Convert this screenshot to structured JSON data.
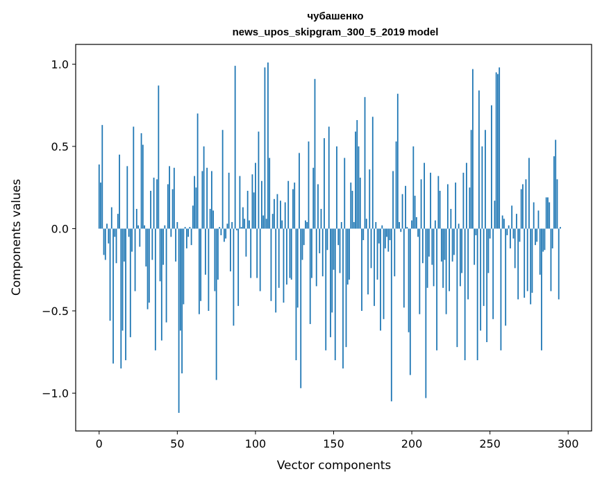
{
  "chart_data": {
    "type": "bar",
    "title_line1": "чубашенко",
    "title_line2": "news_upos_skipgram_300_5_2019 model",
    "xlabel": "Vector components",
    "ylabel": "Components values",
    "xlim": [
      -15,
      315
    ],
    "ylim": [
      -1.23,
      1.12
    ],
    "x_ticks": [
      0,
      50,
      100,
      150,
      200,
      250,
      300
    ],
    "x_tick_labels": [
      "0",
      "50",
      "100",
      "150",
      "200",
      "250",
      "300"
    ],
    "y_ticks": [
      -1.0,
      -0.5,
      0.0,
      0.5,
      1.0
    ],
    "y_tick_labels": [
      "−1.0",
      "−0.5",
      "0.0",
      "0.5",
      "1.0"
    ],
    "bar_color": "#1f77b4",
    "values": [
      0.39,
      0.28,
      0.63,
      -0.16,
      -0.19,
      0.03,
      -0.09,
      -0.56,
      0.13,
      -0.82,
      -0.05,
      -0.21,
      0.09,
      0.45,
      -0.85,
      -0.62,
      -0.2,
      -0.8,
      0.38,
      -0.05,
      -0.66,
      -0.14,
      0.62,
      -0.38,
      0.12,
      0.02,
      -0.11,
      0.58,
      0.51,
      0.02,
      -0.23,
      -0.49,
      -0.45,
      0.23,
      -0.19,
      0.31,
      -0.74,
      0.3,
      0.87,
      -0.32,
      -0.68,
      -0.22,
      0.02,
      -0.57,
      0.27,
      0.38,
      -0.05,
      0.24,
      0.37,
      -0.2,
      0.04,
      -1.12,
      -0.62,
      -0.88,
      -0.46,
      0.01,
      -0.12,
      -0.05,
      0.01,
      -0.1,
      0.14,
      0.32,
      0.25,
      0.7,
      -0.52,
      -0.44,
      0.35,
      0.5,
      -0.28,
      0.37,
      -0.5,
      0.12,
      0.35,
      0.11,
      -0.38,
      -0.92,
      -0.31,
      0.01,
      -0.04,
      0.6,
      -0.08,
      -0.06,
      0.03,
      0.34,
      -0.26,
      0.04,
      -0.59,
      0.99,
      -0.01,
      -0.47,
      0.32,
      0.01,
      0.13,
      0.06,
      -0.17,
      0.23,
      0.05,
      -0.3,
      0.33,
      0.22,
      0.4,
      -0.3,
      0.59,
      -0.38,
      0.29,
      0.08,
      0.98,
      0.06,
      1.01,
      0.43,
      -0.44,
      0.09,
      0.18,
      -0.51,
      0.21,
      -0.36,
      0.17,
      0.05,
      -0.45,
      0.16,
      -0.34,
      0.29,
      -0.3,
      -0.31,
      0.24,
      0.28,
      -0.8,
      -0.48,
      0.46,
      -0.97,
      -0.19,
      -0.1,
      0.05,
      0.04,
      0.53,
      -0.58,
      -0.3,
      0.37,
      0.91,
      -0.35,
      0.27,
      -0.15,
      0.12,
      -0.29,
      0.55,
      -0.74,
      -0.13,
      0.62,
      -0.66,
      -0.51,
      -0.25,
      -0.8,
      0.5,
      -0.1,
      -0.27,
      0.04,
      -0.85,
      0.43,
      -0.72,
      -0.34,
      -0.31,
      0.28,
      0.23,
      0.04,
      0.59,
      0.66,
      0.5,
      0.31,
      -0.5,
      -0.07,
      0.8,
      0.06,
      -0.4,
      0.36,
      -0.24,
      0.68,
      -0.47,
      0.04,
      -0.31,
      -0.09,
      -0.62,
      0.02,
      -0.55,
      -0.12,
      -0.05,
      -0.14,
      -0.07,
      -1.05,
      0.35,
      -0.29,
      0.53,
      0.82,
      0.04,
      -0.02,
      0.21,
      -0.48,
      0.26,
      0.01,
      -0.63,
      -0.89,
      0.05,
      0.5,
      0.2,
      0.07,
      -0.05,
      -0.52,
      0.3,
      -0.21,
      0.4,
      -1.03,
      -0.36,
      -0.17,
      0.34,
      -0.22,
      -0.35,
      0.05,
      -0.74,
      0.32,
      0.23,
      -0.2,
      -0.36,
      -0.19,
      -0.52,
      0.27,
      -0.38,
      0.12,
      -0.2,
      -0.16,
      0.28,
      -0.72,
      0.03,
      -0.35,
      -0.27,
      0.34,
      -0.8,
      0.4,
      -0.43,
      0.25,
      0.6,
      0.97,
      -0.22,
      -0.04,
      -0.8,
      0.84,
      -0.62,
      0.5,
      -0.47,
      0.6,
      -0.69,
      -0.27,
      -0.06,
      0.75,
      -0.55,
      0.17,
      0.95,
      0.94,
      0.98,
      -0.74,
      0.08,
      0.06,
      -0.59,
      -0.04,
      0.02,
      -0.12,
      0.14,
      -0.06,
      -0.24,
      0.09,
      -0.43,
      -0.08,
      0.24,
      0.27,
      -0.42,
      0.3,
      -0.38,
      0.43,
      -0.46,
      -0.39,
      0.16,
      -0.1,
      -0.08,
      0.11,
      -0.28,
      -0.74,
      -0.14,
      -0.13,
      0.19,
      0.19,
      0.16,
      -0.38,
      -0.12,
      0.44,
      0.54,
      0.3,
      -0.43,
      0.01
    ]
  }
}
